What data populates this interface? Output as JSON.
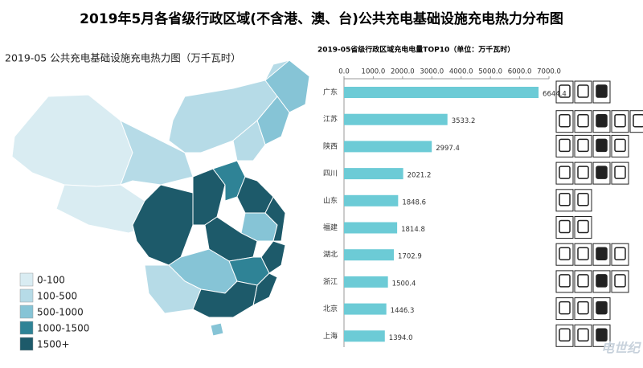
{
  "title": "2019年5月各省级行政区域(不含港、澳、台)公共充电基础设施充电热力分布图",
  "map": {
    "subtitle": "2019-05 公共充电基础设施充电热力图（万千瓦时）",
    "legend": [
      {
        "label": "0-100",
        "color": "#d9ecf2"
      },
      {
        "label": "100-500",
        "color": "#b6dbe7"
      },
      {
        "label": "500-1000",
        "color": "#86c4d6"
      },
      {
        "label": "1000-1500",
        "color": "#2f8396"
      },
      {
        "label": "1500+",
        "color": "#1d5a6a"
      }
    ]
  },
  "chart_data": {
    "type": "bar",
    "orientation": "horizontal",
    "title": "2019-05省级行政区域充电电量TOP10（单位：万千瓦时）",
    "categories": [
      "广东",
      "江苏",
      "陕西",
      "四川",
      "山东",
      "福建",
      "湖北",
      "浙江",
      "北京",
      "上海"
    ],
    "values": [
      6644.4,
      3533.2,
      2997.4,
      2021.2,
      1848.6,
      1814.8,
      1702.9,
      1500.4,
      1446.3,
      1394.0
    ],
    "value_labels": [
      "6644.4",
      "3533.2",
      "2997.4",
      "2021.2",
      "1848.6",
      "1814.8",
      "1702.9",
      "1500.4",
      "1446.3",
      "1394.0"
    ],
    "color": "#6ccbd6",
    "xlim": [
      0,
      7000
    ],
    "xticks": [
      {
        "value": 0,
        "label": "0.0"
      },
      {
        "value": 1000,
        "label": "1000.0"
      },
      {
        "value": 2000,
        "label": "2000.0"
      },
      {
        "value": 3000,
        "label": "3000.0"
      },
      {
        "value": 4000,
        "label": "4000.0"
      },
      {
        "value": 5000,
        "label": "5000.0"
      },
      {
        "value": 6000,
        "label": "6000.0"
      },
      {
        "value": 7000,
        "label": "7000.0"
      }
    ]
  },
  "watermark": "电世纪"
}
